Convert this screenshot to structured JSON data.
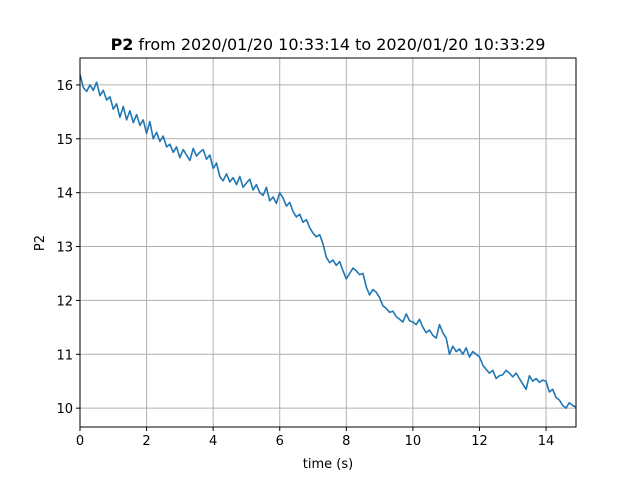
{
  "chart_data": {
    "type": "line",
    "title_bold": "P2",
    "title_rest": " from 2020/01/20 10:33:14 to 2020/01/20 10:33:29",
    "xlabel": "time (s)",
    "ylabel": "P2",
    "xlim": [
      0,
      14.9
    ],
    "ylim": [
      9.65,
      16.5
    ],
    "grid": true,
    "xticks": [
      0,
      2,
      4,
      6,
      8,
      10,
      12,
      14
    ],
    "yticks": [
      10,
      11,
      12,
      13,
      14,
      15,
      16
    ],
    "series": [
      {
        "color": "#1f77b4",
        "x": [
          0,
          0.1,
          0.2,
          0.3,
          0.4,
          0.5,
          0.6,
          0.7,
          0.8,
          0.9,
          1.0,
          1.1,
          1.2,
          1.3,
          1.4,
          1.5,
          1.6,
          1.7,
          1.8,
          1.9,
          2.0,
          2.1,
          2.2,
          2.3,
          2.4,
          2.5,
          2.6,
          2.7,
          2.8,
          2.9,
          3.0,
          3.1,
          3.2,
          3.3,
          3.4,
          3.5,
          3.6,
          3.7,
          3.8,
          3.9,
          4.0,
          4.1,
          4.2,
          4.3,
          4.4,
          4.5,
          4.6,
          4.7,
          4.8,
          4.9,
          5.0,
          5.1,
          5.2,
          5.3,
          5.4,
          5.5,
          5.6,
          5.7,
          5.8,
          5.9,
          6.0,
          6.1,
          6.2,
          6.3,
          6.4,
          6.5,
          6.6,
          6.7,
          6.8,
          6.9,
          7.0,
          7.1,
          7.2,
          7.3,
          7.4,
          7.5,
          7.6,
          7.7,
          7.8,
          7.9,
          8.0,
          8.1,
          8.2,
          8.3,
          8.4,
          8.5,
          8.6,
          8.7,
          8.8,
          8.9,
          9.0,
          9.1,
          9.2,
          9.3,
          9.4,
          9.5,
          9.6,
          9.7,
          9.8,
          9.9,
          10.0,
          10.1,
          10.2,
          10.3,
          10.4,
          10.5,
          10.6,
          10.7,
          10.8,
          10.9,
          11.0,
          11.1,
          11.2,
          11.3,
          11.4,
          11.5,
          11.6,
          11.7,
          11.8,
          11.9,
          12.0,
          12.1,
          12.2,
          12.3,
          12.4,
          12.5,
          12.6,
          12.7,
          12.8,
          12.9,
          13.0,
          13.1,
          13.2,
          13.3,
          13.4,
          13.5,
          13.6,
          13.7,
          13.8,
          13.9,
          14.0,
          14.1,
          14.2,
          14.3,
          14.4,
          14.5,
          14.6,
          14.7,
          14.8,
          14.9
        ],
        "y": [
          16.2,
          15.95,
          15.88,
          16.0,
          15.9,
          16.05,
          15.8,
          15.9,
          15.72,
          15.78,
          15.55,
          15.65,
          15.4,
          15.6,
          15.35,
          15.52,
          15.3,
          15.45,
          15.25,
          15.35,
          15.1,
          15.32,
          15.0,
          15.12,
          14.95,
          15.05,
          14.85,
          14.9,
          14.75,
          14.85,
          14.65,
          14.8,
          14.7,
          14.6,
          14.82,
          14.68,
          14.75,
          14.8,
          14.62,
          14.7,
          14.45,
          14.55,
          14.3,
          14.22,
          14.35,
          14.2,
          14.28,
          14.15,
          14.3,
          14.1,
          14.18,
          14.25,
          14.05,
          14.15,
          14.0,
          13.95,
          14.1,
          13.85,
          13.92,
          13.8,
          14.0,
          13.9,
          13.75,
          13.82,
          13.65,
          13.55,
          13.6,
          13.45,
          13.5,
          13.35,
          13.25,
          13.18,
          13.22,
          13.05,
          12.8,
          12.7,
          12.75,
          12.65,
          12.72,
          12.55,
          12.4,
          12.5,
          12.6,
          12.55,
          12.48,
          12.5,
          12.25,
          12.1,
          12.2,
          12.15,
          12.05,
          11.9,
          11.85,
          11.78,
          11.8,
          11.7,
          11.65,
          11.6,
          11.75,
          11.62,
          11.6,
          11.55,
          11.65,
          11.5,
          11.4,
          11.45,
          11.35,
          11.3,
          11.55,
          11.4,
          11.3,
          11.0,
          11.15,
          11.05,
          11.1,
          11.0,
          11.12,
          10.95,
          11.05,
          11.0,
          10.95,
          10.8,
          10.72,
          10.65,
          10.7,
          10.55,
          10.6,
          10.62,
          10.7,
          10.65,
          10.58,
          10.65,
          10.55,
          10.45,
          10.35,
          10.6,
          10.5,
          10.55,
          10.48,
          10.52,
          10.5,
          10.3,
          10.35,
          10.2,
          10.15,
          10.05,
          10.0,
          10.1,
          10.05,
          10.02
        ]
      }
    ]
  }
}
